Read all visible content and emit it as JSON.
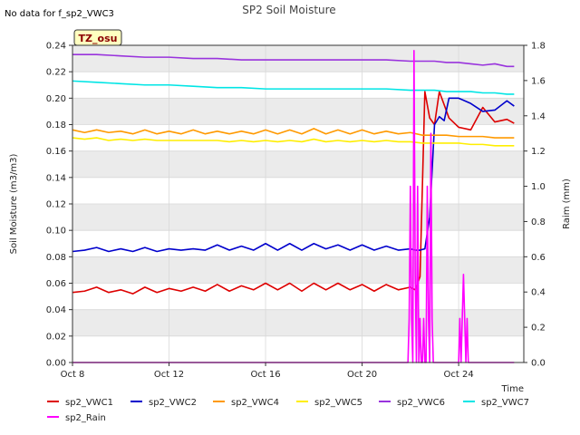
{
  "chart_data": {
    "type": "line",
    "title": "SP2 Soil Moisture",
    "note": "No data for f_sp2_VWC3",
    "badge": "TZ_osu",
    "xlabel": "Time",
    "ylabel": "Soil Moisture (m3/m3)",
    "y2label": "Raim (mm)",
    "xlim": [
      0,
      18.7
    ],
    "ylim": [
      0,
      0.24
    ],
    "y2lim": [
      0,
      1.8
    ],
    "x_ticks": [
      {
        "label": "Oct 8",
        "x": 0
      },
      {
        "label": "Oct 12",
        "x": 4
      },
      {
        "label": "Oct 16",
        "x": 8
      },
      {
        "label": "Oct 20",
        "x": 12
      },
      {
        "label": "Oct 24",
        "x": 16
      }
    ],
    "y_ticks": [
      0.0,
      0.02,
      0.04,
      0.06,
      0.08,
      0.1,
      0.12,
      0.14,
      0.16,
      0.18,
      0.2,
      0.22,
      0.24
    ],
    "y_tick_labels": [
      "0.00",
      "0.02",
      "0.04",
      "0.06",
      "0.08",
      "0.10",
      "0.12",
      "0.14",
      "0.16",
      "0.18",
      "0.20",
      "0.22",
      "0.24"
    ],
    "y2_ticks": [
      0.0,
      0.2,
      0.4,
      0.6,
      0.8,
      1.0,
      1.2,
      1.4,
      1.6,
      1.8
    ],
    "y2_tick_labels": [
      "0.0",
      "0.2",
      "0.4",
      "0.6",
      "0.8",
      "1.0",
      "1.2",
      "1.4",
      "1.6",
      "1.8"
    ],
    "grid": true,
    "legend_position": "bottom",
    "series": [
      {
        "name": "sp2_VWC1",
        "color": "#dd0000",
        "axis": "left",
        "x": [
          0,
          0.5,
          1,
          1.5,
          2,
          2.5,
          3,
          3.5,
          4,
          4.5,
          5,
          5.5,
          6,
          6.5,
          7,
          7.5,
          8,
          8.5,
          9,
          9.5,
          10,
          10.5,
          11,
          11.5,
          12,
          12.5,
          13,
          13.5,
          14,
          14.2,
          14.4,
          14.6,
          14.8,
          15,
          15.2,
          15.4,
          15.6,
          16,
          16.5,
          17,
          17.5,
          18,
          18.3
        ],
        "y": [
          0.053,
          0.054,
          0.057,
          0.053,
          0.055,
          0.052,
          0.057,
          0.053,
          0.056,
          0.054,
          0.057,
          0.054,
          0.059,
          0.054,
          0.058,
          0.055,
          0.06,
          0.055,
          0.06,
          0.054,
          0.06,
          0.055,
          0.06,
          0.055,
          0.059,
          0.054,
          0.059,
          0.055,
          0.057,
          0.055,
          0.065,
          0.205,
          0.185,
          0.18,
          0.205,
          0.195,
          0.185,
          0.178,
          0.176,
          0.193,
          0.182,
          0.184,
          0.181
        ]
      },
      {
        "name": "sp2_VWC2",
        "color": "#0000cc",
        "axis": "left",
        "x": [
          0,
          0.5,
          1,
          1.5,
          2,
          2.5,
          3,
          3.5,
          4,
          4.5,
          5,
          5.5,
          6,
          6.5,
          7,
          7.5,
          8,
          8.5,
          9,
          9.5,
          10,
          10.5,
          11,
          11.5,
          12,
          12.5,
          13,
          13.5,
          14,
          14.2,
          14.4,
          14.6,
          14.8,
          15,
          15.2,
          15.4,
          15.6,
          16,
          16.5,
          17,
          17.5,
          18,
          18.3
        ],
        "y": [
          0.084,
          0.085,
          0.087,
          0.084,
          0.086,
          0.084,
          0.087,
          0.084,
          0.086,
          0.085,
          0.086,
          0.085,
          0.089,
          0.085,
          0.088,
          0.085,
          0.09,
          0.085,
          0.09,
          0.085,
          0.09,
          0.086,
          0.089,
          0.085,
          0.089,
          0.085,
          0.088,
          0.085,
          0.086,
          0.085,
          0.085,
          0.086,
          0.11,
          0.18,
          0.186,
          0.183,
          0.2,
          0.2,
          0.196,
          0.19,
          0.191,
          0.198,
          0.194
        ]
      },
      {
        "name": "sp2_VWC4",
        "color": "#ff9900",
        "axis": "left",
        "x": [
          0,
          0.5,
          1,
          1.5,
          2,
          2.5,
          3,
          3.5,
          4,
          4.5,
          5,
          5.5,
          6,
          6.5,
          7,
          7.5,
          8,
          8.5,
          9,
          9.5,
          10,
          10.5,
          11,
          11.5,
          12,
          12.5,
          13,
          13.5,
          14,
          14.5,
          15,
          15.5,
          16,
          16.5,
          17,
          17.5,
          18,
          18.3
        ],
        "y": [
          0.176,
          0.174,
          0.176,
          0.174,
          0.175,
          0.173,
          0.176,
          0.173,
          0.175,
          0.173,
          0.176,
          0.173,
          0.175,
          0.173,
          0.175,
          0.173,
          0.176,
          0.173,
          0.176,
          0.173,
          0.177,
          0.173,
          0.176,
          0.173,
          0.176,
          0.173,
          0.175,
          0.173,
          0.174,
          0.172,
          0.172,
          0.172,
          0.171,
          0.171,
          0.171,
          0.17,
          0.17,
          0.17
        ]
      },
      {
        "name": "sp2_VWC5",
        "color": "#ffee00",
        "axis": "left",
        "x": [
          0,
          0.5,
          1,
          1.5,
          2,
          2.5,
          3,
          3.5,
          4,
          4.5,
          5,
          5.5,
          6,
          6.5,
          7,
          7.5,
          8,
          8.5,
          9,
          9.5,
          10,
          10.5,
          11,
          11.5,
          12,
          12.5,
          13,
          13.5,
          14,
          14.5,
          15,
          15.5,
          16,
          16.5,
          17,
          17.5,
          18,
          18.3
        ],
        "y": [
          0.17,
          0.169,
          0.17,
          0.168,
          0.169,
          0.168,
          0.169,
          0.168,
          0.168,
          0.168,
          0.168,
          0.168,
          0.168,
          0.167,
          0.168,
          0.167,
          0.168,
          0.167,
          0.168,
          0.167,
          0.169,
          0.167,
          0.168,
          0.167,
          0.168,
          0.167,
          0.168,
          0.167,
          0.167,
          0.166,
          0.166,
          0.166,
          0.166,
          0.165,
          0.165,
          0.164,
          0.164,
          0.164
        ]
      },
      {
        "name": "sp2_VWC6",
        "color": "#9933dd",
        "axis": "left",
        "x": [
          0,
          1,
          2,
          3,
          4,
          5,
          6,
          7,
          8,
          9,
          10,
          11,
          12,
          13,
          14,
          14.5,
          15,
          15.5,
          16,
          16.5,
          17,
          17.5,
          18,
          18.3
        ],
        "y": [
          0.233,
          0.233,
          0.232,
          0.231,
          0.231,
          0.23,
          0.23,
          0.229,
          0.229,
          0.229,
          0.229,
          0.229,
          0.229,
          0.229,
          0.228,
          0.228,
          0.228,
          0.227,
          0.227,
          0.226,
          0.225,
          0.226,
          0.224,
          0.224
        ]
      },
      {
        "name": "sp2_VWC7",
        "color": "#00e5e5",
        "axis": "left",
        "x": [
          0,
          1,
          2,
          3,
          4,
          5,
          6,
          7,
          8,
          9,
          10,
          11,
          12,
          13,
          14,
          14.5,
          15,
          15.5,
          16,
          16.5,
          17,
          17.5,
          18,
          18.3
        ],
        "y": [
          0.213,
          0.212,
          0.211,
          0.21,
          0.21,
          0.209,
          0.208,
          0.208,
          0.207,
          0.207,
          0.207,
          0.207,
          0.207,
          0.207,
          0.206,
          0.206,
          0.206,
          0.205,
          0.205,
          0.205,
          0.204,
          0.204,
          0.203,
          0.203
        ]
      },
      {
        "name": "sp2_Rain",
        "color": "#ff00ff",
        "axis": "right",
        "x": [
          0,
          13.9,
          13.95,
          14.0,
          14.05,
          14.1,
          14.15,
          14.2,
          14.25,
          14.3,
          14.35,
          14.4,
          14.45,
          14.5,
          14.55,
          14.6,
          14.65,
          14.7,
          14.75,
          14.8,
          14.85,
          14.9,
          14.95,
          15.0,
          15.05,
          15.1,
          15.15,
          15.2,
          15.25,
          15.3,
          15.35,
          15.4,
          15.45,
          15.5,
          15.55,
          16.0,
          16.05,
          16.1,
          16.15,
          16.2,
          16.25,
          16.3,
          16.35,
          16.4,
          16.45,
          16.5,
          16.55,
          16.6,
          18.3
        ],
        "y": [
          0,
          0,
          0.25,
          1.0,
          0.25,
          0.0,
          1.77,
          0.5,
          0,
          1.0,
          0,
          0.25,
          0,
          0.0,
          0.25,
          0,
          0.0,
          1.0,
          0.25,
          0,
          1.3,
          0.25,
          0,
          0,
          0,
          0,
          0,
          0,
          0,
          0,
          0,
          0,
          0,
          0,
          0,
          0,
          0.25,
          0,
          0.25,
          0.5,
          0.25,
          0,
          0.25,
          0,
          0,
          0,
          0,
          0,
          0
        ]
      }
    ]
  }
}
